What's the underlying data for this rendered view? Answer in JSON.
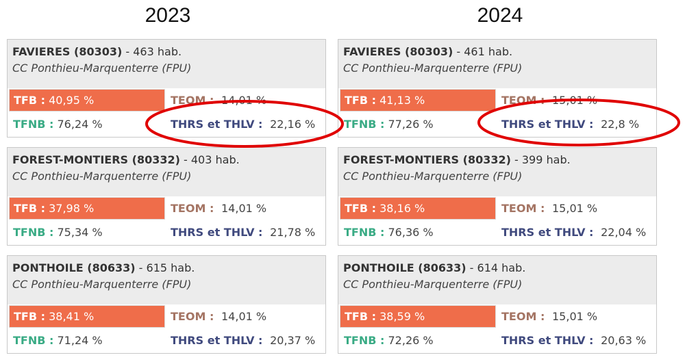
{
  "columns": [
    {
      "year": "2023",
      "cards": [
        {
          "name": "FAVIERES (80303)",
          "pop": " - 463 hab.",
          "group": "CC Ponthieu-Marquenterre (FPU)",
          "tfb": "40,95 %",
          "teom": "14,01 %",
          "tfnb": "76,24 %",
          "thrs": "22,16 %"
        },
        {
          "name": "FOREST-MONTIERS (80332)",
          "pop": " - 403 hab.",
          "group": "CC Ponthieu-Marquenterre (FPU)",
          "tfb": "37,98 %",
          "teom": "14,01 %",
          "tfnb": "75,34 %",
          "thrs": "21,78 %"
        },
        {
          "name": "PONTHOILE (80633)",
          "pop": " - 615 hab.",
          "group": "CC Ponthieu-Marquenterre (FPU)",
          "tfb": "38,41 %",
          "teom": "14,01 %",
          "tfnb": "71,24 %",
          "thrs": "20,37 %"
        }
      ]
    },
    {
      "year": "2024",
      "cards": [
        {
          "name": "FAVIERES (80303)",
          "pop": " - 461 hab.",
          "group": "CC Ponthieu-Marquenterre (FPU)",
          "tfb": "41,13 %",
          "teom": "15,01 %",
          "tfnb": "77,26 %",
          "thrs": "22,8 %"
        },
        {
          "name": "FOREST-MONTIERS (80332)",
          "pop": " - 399 hab.",
          "group": "CC Ponthieu-Marquenterre (FPU)",
          "tfb": "38,16 %",
          "teom": "15,01 %",
          "tfnb": "76,36 %",
          "thrs": "22,04 %"
        },
        {
          "name": "PONTHOILE (80633)",
          "pop": " - 614 hab.",
          "group": "CC Ponthieu-Marquenterre (FPU)",
          "tfb": "38,59 %",
          "teom": "15,01 %",
          "tfnb": "72,26 %",
          "thrs": "20,63 %"
        }
      ]
    }
  ],
  "labels": {
    "tfb": "TFB : ",
    "teom": "TEOM : ",
    "tfnb": "TFNB : ",
    "thrs": "THRS et THLV : "
  },
  "colors": {
    "tfb": "#ef6d4a",
    "teom": "#a47463",
    "tfnb": "#3aab85",
    "thrs": "#404a7e",
    "highlight": "#e00000"
  }
}
